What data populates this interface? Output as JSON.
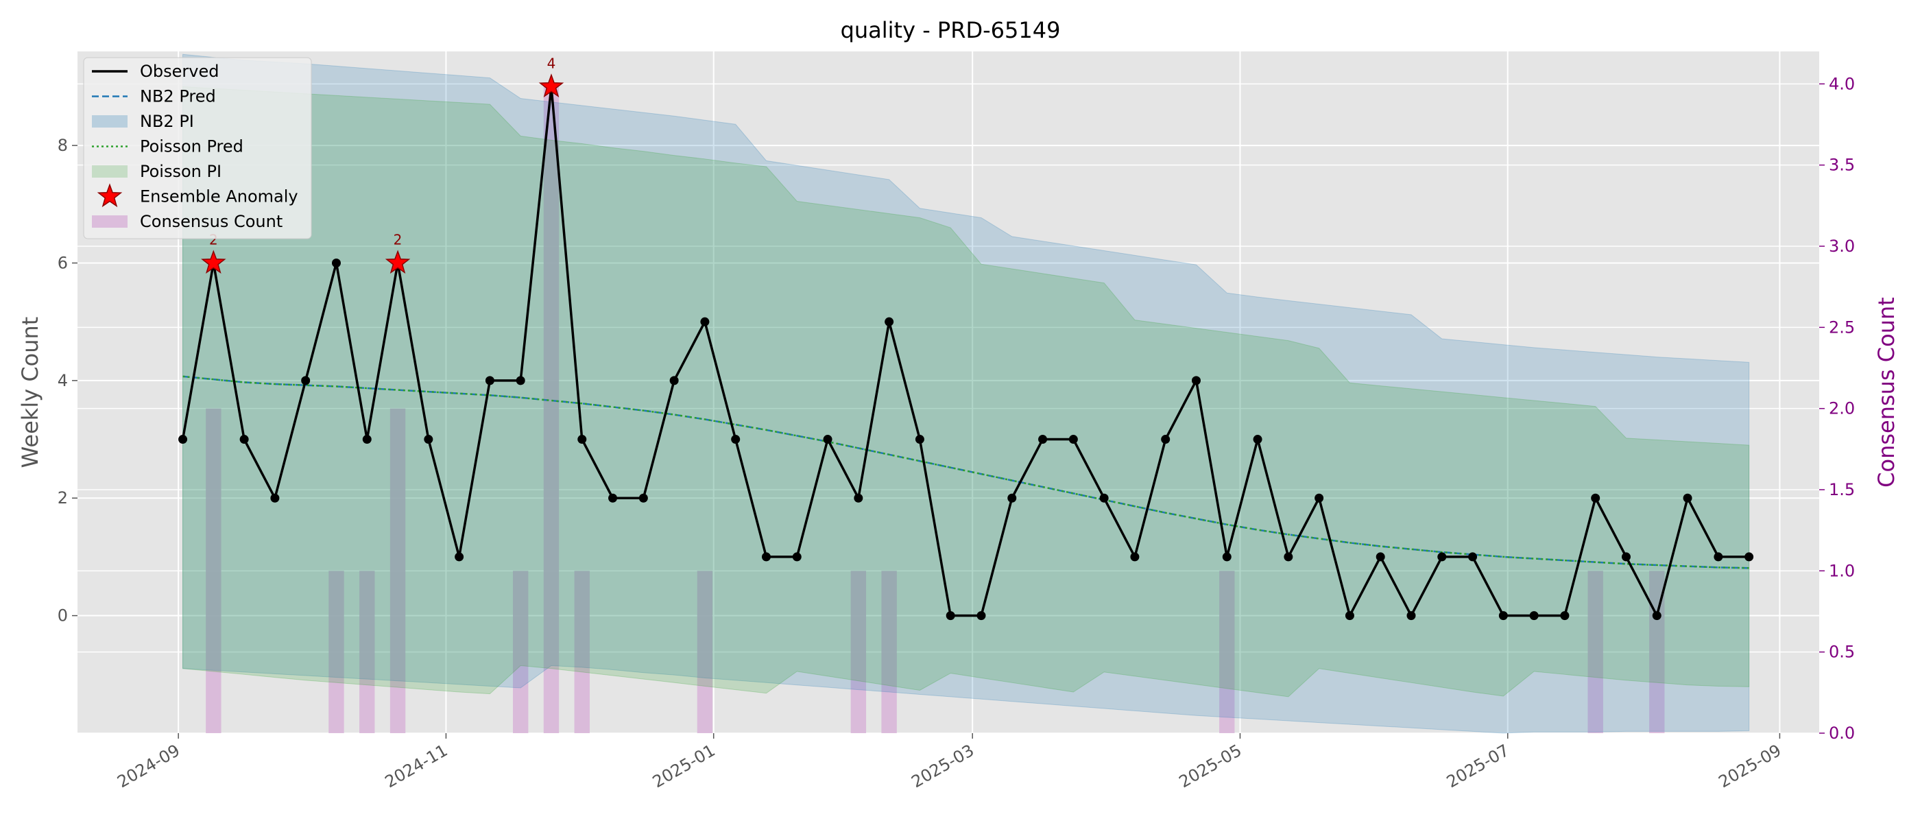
{
  "chart_data": {
    "type": "line",
    "title": "quality - PRD-65149",
    "ylabel": "Weekly Count",
    "y2label": "Consensus Count",
    "x_tick_labels": [
      "2024-09",
      "2024-11",
      "2025-01",
      "2025-03",
      "2025-05",
      "2025-07",
      "2025-09"
    ],
    "x_tick_dates": [
      "2024-09-01",
      "2024-11-01",
      "2025-01-01",
      "2025-03-01",
      "2025-05-01",
      "2025-07-01",
      "2025-09-01"
    ],
    "x_range": [
      "2024-08-09",
      "2025-09-10"
    ],
    "ylim": [
      -2,
      9.6
    ],
    "y_ticks": [
      0,
      2,
      4,
      6,
      8
    ],
    "y2lim": [
      0,
      4.2
    ],
    "y2_ticks": [
      "0.0",
      "0.5",
      "1.0",
      "1.5",
      "2.0",
      "2.5",
      "3.0",
      "3.5",
      "4.0"
    ],
    "grid": true,
    "legend_placement": "upper-left",
    "legend": [
      "Observed",
      "NB2 Pred",
      "NB2 PI",
      "Poisson Pred",
      "Poisson PI",
      "Ensemble Anomaly",
      "Consensus Count"
    ],
    "dates": [
      "2024-09-02",
      "2024-09-09",
      "2024-09-16",
      "2024-09-23",
      "2024-09-30",
      "2024-10-07",
      "2024-10-14",
      "2024-10-21",
      "2024-10-28",
      "2024-11-04",
      "2024-11-11",
      "2024-11-18",
      "2024-11-25",
      "2024-12-02",
      "2024-12-09",
      "2024-12-16",
      "2024-12-23",
      "2024-12-30",
      "2025-01-06",
      "2025-01-13",
      "2025-01-20",
      "2025-01-27",
      "2025-02-03",
      "2025-02-10",
      "2025-02-17",
      "2025-02-24",
      "2025-03-03",
      "2025-03-10",
      "2025-03-17",
      "2025-03-24",
      "2025-03-31",
      "2025-04-07",
      "2025-04-14",
      "2025-04-21",
      "2025-04-28",
      "2025-05-05",
      "2025-05-12",
      "2025-05-19",
      "2025-05-26",
      "2025-06-02",
      "2025-06-09",
      "2025-06-16",
      "2025-06-23",
      "2025-06-30",
      "2025-07-07",
      "2025-07-14",
      "2025-07-21",
      "2025-07-28",
      "2025-08-04",
      "2025-08-11",
      "2025-08-18",
      "2025-08-25"
    ],
    "series": [
      {
        "name": "Observed",
        "axis": "left",
        "values": [
          3,
          6,
          3,
          2,
          4,
          6,
          3,
          6,
          3,
          1,
          4,
          4,
          9,
          3,
          2,
          2,
          4,
          5,
          3,
          1,
          1,
          3,
          2,
          5,
          3,
          0,
          0,
          2,
          3,
          3,
          2,
          1,
          3,
          4,
          1,
          3,
          1,
          2,
          0,
          1,
          0,
          1,
          1,
          0,
          0,
          0,
          2,
          1,
          0,
          2,
          1,
          1
        ]
      },
      {
        "name": "NB2 Pred",
        "axis": "left",
        "values": [
          4.07,
          4.02,
          3.97,
          3.94,
          3.92,
          3.9,
          3.87,
          3.84,
          3.81,
          3.78,
          3.75,
          3.71,
          3.66,
          3.61,
          3.55,
          3.49,
          3.42,
          3.34,
          3.25,
          3.16,
          3.06,
          2.96,
          2.85,
          2.74,
          2.63,
          2.52,
          2.41,
          2.3,
          2.19,
          2.08,
          1.97,
          1.86,
          1.75,
          1.65,
          1.55,
          1.46,
          1.38,
          1.31,
          1.24,
          1.18,
          1.13,
          1.08,
          1.04,
          1.0,
          0.97,
          0.94,
          0.91,
          0.88,
          0.86,
          0.84,
          0.82,
          0.81
        ]
      },
      {
        "name": "NB2 PI",
        "axis": "left",
        "lower": [
          -0.9,
          -0.93,
          -0.96,
          -0.99,
          -1.02,
          -1.05,
          -1.08,
          -1.11,
          -1.14,
          -1.17,
          -1.2,
          -1.23,
          -0.85,
          -0.88,
          -0.92,
          -0.97,
          -1.01,
          -1.06,
          -1.1,
          -1.14,
          -1.18,
          -1.22,
          -1.26,
          -1.3,
          -1.34,
          -1.38,
          -1.42,
          -1.46,
          -1.5,
          -1.54,
          -1.58,
          -1.62,
          -1.66,
          -1.7,
          -1.73,
          -1.76,
          -1.79,
          -1.82,
          -1.85,
          -1.88,
          -1.91,
          -1.94,
          -1.97,
          -2.0,
          -1.98,
          -1.98,
          -1.98,
          -1.97,
          -1.97,
          -1.97,
          -1.97,
          -1.96
        ],
        "upper": [
          9.55,
          9.5,
          9.45,
          9.42,
          9.39,
          9.35,
          9.31,
          9.27,
          9.23,
          9.19,
          9.15,
          8.8,
          8.74,
          8.68,
          8.62,
          8.56,
          8.5,
          8.43,
          8.36,
          7.74,
          7.66,
          7.58,
          7.5,
          7.42,
          6.93,
          6.85,
          6.77,
          6.45,
          6.37,
          6.29,
          6.21,
          6.13,
          6.05,
          5.97,
          5.49,
          5.42,
          5.36,
          5.3,
          5.24,
          5.18,
          5.12,
          4.71,
          4.66,
          4.61,
          4.56,
          4.52,
          4.48,
          4.44,
          4.4,
          4.37,
          4.34,
          4.31
        ]
      },
      {
        "name": "Poisson Pred",
        "axis": "left",
        "values": [
          4.07,
          4.02,
          3.97,
          3.94,
          3.92,
          3.9,
          3.87,
          3.84,
          3.81,
          3.78,
          3.75,
          3.71,
          3.66,
          3.61,
          3.55,
          3.49,
          3.42,
          3.34,
          3.25,
          3.16,
          3.06,
          2.96,
          2.85,
          2.74,
          2.63,
          2.52,
          2.41,
          2.3,
          2.19,
          2.08,
          1.97,
          1.86,
          1.75,
          1.65,
          1.55,
          1.46,
          1.38,
          1.31,
          1.24,
          1.18,
          1.13,
          1.08,
          1.04,
          1.0,
          0.97,
          0.94,
          0.91,
          0.88,
          0.86,
          0.84,
          0.82,
          0.81
        ]
      },
      {
        "name": "Poisson PI",
        "axis": "left",
        "lower": [
          -0.9,
          -0.95,
          -1.0,
          -1.05,
          -1.1,
          -1.14,
          -1.18,
          -1.22,
          -1.26,
          -1.3,
          -1.33,
          -0.85,
          -0.9,
          -0.96,
          -1.02,
          -1.08,
          -1.14,
          -1.2,
          -1.26,
          -1.32,
          -0.95,
          -1.03,
          -1.11,
          -1.19,
          -1.27,
          -0.98,
          -1.06,
          -1.14,
          -1.22,
          -1.3,
          -0.96,
          -1.03,
          -1.1,
          -1.17,
          -1.24,
          -1.31,
          -1.38,
          -0.9,
          -0.98,
          -1.06,
          -1.14,
          -1.22,
          -1.3,
          -1.37,
          -0.95,
          -1.0,
          -1.05,
          -1.1,
          -1.14,
          -1.18,
          -1.2,
          -1.21
        ],
        "upper": [
          9.0,
          8.97,
          8.94,
          8.91,
          8.88,
          8.85,
          8.82,
          8.79,
          8.76,
          8.73,
          8.7,
          8.16,
          8.09,
          8.03,
          7.96,
          7.9,
          7.83,
          7.77,
          7.7,
          7.64,
          7.05,
          6.98,
          6.91,
          6.84,
          6.77,
          6.6,
          5.98,
          5.9,
          5.82,
          5.74,
          5.66,
          5.03,
          4.96,
          4.89,
          4.82,
          4.75,
          4.68,
          4.55,
          3.96,
          3.91,
          3.86,
          3.81,
          3.76,
          3.71,
          3.66,
          3.61,
          3.56,
          3.02,
          2.99,
          2.96,
          2.93,
          2.9
        ]
      },
      {
        "name": "Ensemble Anomaly",
        "axis": "left",
        "x": [
          "2024-09-09",
          "2024-10-21",
          "2024-11-25"
        ],
        "values": [
          6,
          6,
          9
        ],
        "labels": [
          "2",
          "2",
          "4"
        ]
      },
      {
        "name": "Consensus Count",
        "axis": "right",
        "x": [
          "2024-09-09",
          "2024-10-07",
          "2024-10-14",
          "2024-10-21",
          "2024-11-18",
          "2024-11-25",
          "2024-12-02",
          "2024-12-30",
          "2025-02-03",
          "2025-02-10",
          "2025-04-28",
          "2025-07-21",
          "2025-08-04"
        ],
        "values": [
          2,
          1,
          1,
          2,
          1,
          4,
          1,
          1,
          1,
          1,
          1,
          1,
          1
        ]
      }
    ],
    "colors": {
      "observed": "#000000",
      "nb2_pred": "#1f77b4",
      "poisson_pred": "#2ca02c",
      "nb2_pi": "#1f77b4",
      "poisson_pi": "#2ca02c",
      "anomaly": "#ff0000",
      "consensus": "#d8b4d8",
      "right_axis": "#800080",
      "plot_bg": "#e5e5e5",
      "grid": "#ffffff"
    }
  }
}
